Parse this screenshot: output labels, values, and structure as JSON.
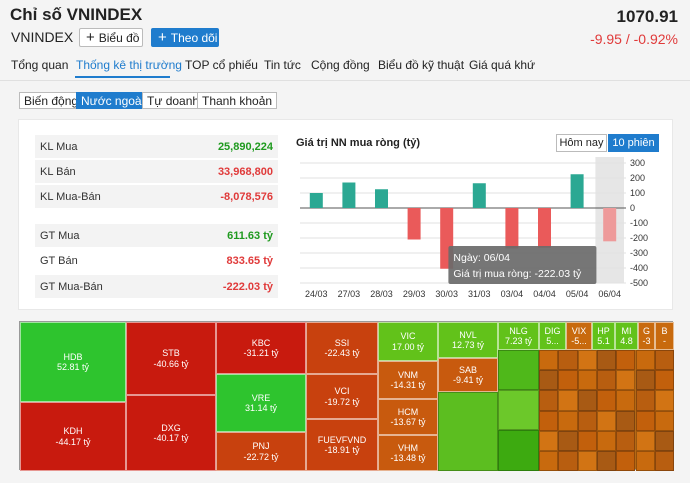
{
  "header": {
    "title": "Chỉ số VNINDEX",
    "symbol": "VNINDEX",
    "price": "1070.91",
    "change": "-9.95 / -0.92%",
    "chart_button": "Biểu đồ",
    "follow_button": "Theo dõi"
  },
  "nav": {
    "tabs": [
      "Tổng quan",
      "Thống kê thị trường",
      "TOP cổ phiếu",
      "Tin tức",
      "Cộng đồng",
      "Biểu đồ kỹ thuật",
      "Giá quá khứ"
    ],
    "active": "Thống kê thị trường"
  },
  "subtabs": {
    "items": [
      "Biến động",
      "Nước ngoài",
      "Tự doanh",
      "Thanh khoản"
    ],
    "active": "Nước ngoài"
  },
  "stats": {
    "rows": [
      {
        "label": "KL Mua",
        "value": "25,890,224",
        "color": "#1f9a1f"
      },
      {
        "label": "KL Bán",
        "value": "33,968,800",
        "color": "#e03a3a"
      },
      {
        "label": "KL Mua-Bán",
        "value": "-8,078,576",
        "color": "#e03a3a"
      },
      {
        "label": "GT Mua",
        "value": "611.63 tỷ",
        "color": "#1f9a1f"
      },
      {
        "label": "GT Bán",
        "value": "833.65 tỷ",
        "color": "#e03a3a"
      },
      {
        "label": "GT Mua-Bán",
        "value": "-222.03 tỷ",
        "color": "#e03a3a"
      }
    ]
  },
  "range": {
    "today": "Hôm nay",
    "ten": "10 phiên"
  },
  "chart_data": {
    "type": "bar",
    "title": "Giá trị NN mua ròng (tỷ)",
    "categories": [
      "24/03",
      "27/03",
      "28/03",
      "29/03",
      "30/03",
      "31/03",
      "03/04",
      "04/04",
      "05/04",
      "06/04"
    ],
    "values": [
      100,
      170,
      125,
      -210,
      -405,
      165,
      -270,
      -265,
      225,
      -222.03
    ],
    "ylim": [
      -500,
      300
    ],
    "yticks": [
      300,
      200,
      100,
      0,
      -100,
      -200,
      -300,
      -400,
      -500
    ],
    "ytick_labels": [
      "300",
      "200",
      "100",
      "0",
      "-100",
      "-200",
      "-300",
      "-400",
      "-500"
    ],
    "positive_color": "#2ba893",
    "negative_color": "#ea5a5a",
    "highlight_color": "#ee9a9a",
    "tooltip": {
      "date_line": "Ngày: 06/04",
      "value_line": "Giá trị mua ròng: -222.03 tỷ"
    }
  },
  "treemap": {
    "cells": [
      {
        "name": "HDB",
        "value": "52.81 tỷ",
        "color": "#2ec42e"
      },
      {
        "name": "STB",
        "value": "-40.66 tỷ",
        "color": "#c81a0e"
      },
      {
        "name": "KDH",
        "value": "-44.17 tỷ",
        "color": "#c81a0e"
      },
      {
        "name": "DXG",
        "value": "-40.17 tỷ",
        "color": "#c81a0e"
      },
      {
        "name": "KBC",
        "value": "-31.21 tỷ",
        "color": "#c81a0e"
      },
      {
        "name": "VRE",
        "value": "31.14 tỷ",
        "color": "#2ec42e"
      },
      {
        "name": "PNJ",
        "value": "-22.72 tỷ",
        "color": "#c8410e"
      },
      {
        "name": "SSI",
        "value": "-22.43 tỷ",
        "color": "#c8410e"
      },
      {
        "name": "VCI",
        "value": "-19.72 tỷ",
        "color": "#c8410e"
      },
      {
        "name": "FUEVFVND",
        "value": "-18.91 tỷ",
        "color": "#c8410e"
      },
      {
        "name": "VIC",
        "value": "17.00 tỷ",
        "color": "#62c21a"
      },
      {
        "name": "VNM",
        "value": "-14.31 tỷ",
        "color": "#c85a0e"
      },
      {
        "name": "HCM",
        "value": "-13.67 tỷ",
        "color": "#c85a0e"
      },
      {
        "name": "VHM",
        "value": "-13.48 tỷ",
        "color": "#c85a0e"
      },
      {
        "name": "NVL",
        "value": "12.73 tỷ",
        "color": "#62c21a"
      },
      {
        "name": "SAB",
        "value": "-9.41 tỷ",
        "color": "#c85a0e"
      },
      {
        "name": "NLG",
        "value": "7.23 tỷ",
        "color": "#62c21a"
      },
      {
        "name": "DIG",
        "value": "5...",
        "color": "#62c21a"
      },
      {
        "name": "VIX",
        "value": "-5...",
        "color": "#c86a0e"
      },
      {
        "name": "HP",
        "value": "5.1",
        "color": "#62c21a"
      },
      {
        "name": "MI",
        "value": "4.8",
        "color": "#62c21a"
      },
      {
        "name": "G",
        "value": "-3",
        "color": "#c86a0e"
      },
      {
        "name": "B",
        "value": "-",
        "color": "#c86a0e"
      }
    ]
  }
}
